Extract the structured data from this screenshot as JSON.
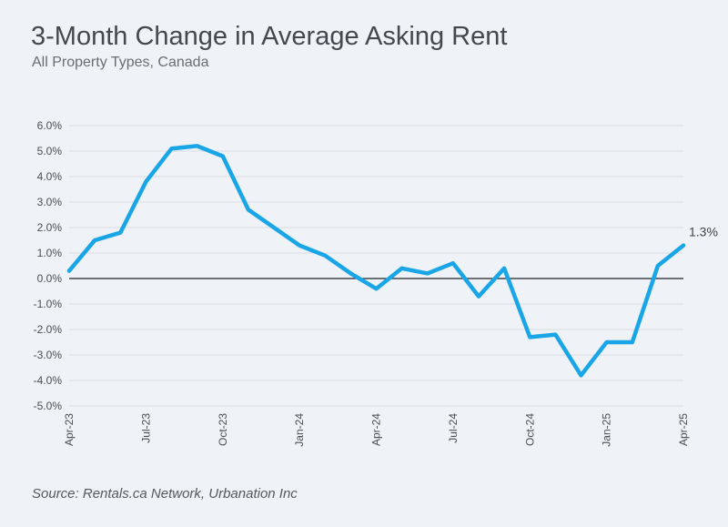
{
  "chart_data": {
    "type": "line",
    "title": "3-Month Change in Average Asking Rent",
    "subtitle": "All Property Types, Canada",
    "source": "Source: Rentals.ca Network, Urbanation Inc",
    "x": [
      "Apr-23",
      "May-23",
      "Jun-23",
      "Jul-23",
      "Aug-23",
      "Sep-23",
      "Oct-23",
      "Nov-23",
      "Dec-23",
      "Jan-24",
      "Feb-24",
      "Mar-24",
      "Apr-24",
      "May-24",
      "Jun-24",
      "Jul-24",
      "Aug-24",
      "Sep-24",
      "Oct-24",
      "Nov-24",
      "Dec-24",
      "Jan-25",
      "Feb-25",
      "Mar-25",
      "Apr-25"
    ],
    "x_tick_labels": [
      "Apr-23",
      "Jul-23",
      "Oct-23",
      "Jan-24",
      "Apr-24",
      "Jul-24",
      "Oct-24",
      "Jan-25",
      "Apr-25"
    ],
    "x_tick_positions": [
      0,
      3,
      6,
      9,
      12,
      15,
      18,
      21,
      24
    ],
    "series": [
      {
        "name": "3-Month Change in Average Asking Rent",
        "color": "#1aa6e6",
        "values": [
          0.3,
          1.5,
          1.8,
          3.8,
          5.1,
          5.2,
          4.8,
          2.7,
          2.0,
          1.3,
          0.9,
          0.2,
          -0.4,
          0.4,
          0.2,
          0.6,
          -0.7,
          0.4,
          -2.3,
          -2.2,
          -3.8,
          -2.5,
          -2.5,
          0.5,
          1.3
        ]
      }
    ],
    "ylim": [
      -5,
      6
    ],
    "y_ticks": [
      6,
      5,
      4,
      3,
      2,
      1,
      0,
      -1,
      -2,
      -3,
      -4,
      -5
    ],
    "y_tick_labels": [
      "6.0%",
      "5.0%",
      "4.0%",
      "3.0%",
      "2.0%",
      "1.0%",
      "0.0%",
      "-1.0%",
      "-2.0%",
      "-3.0%",
      "-4.0%",
      "-5.0%"
    ],
    "grid": true,
    "end_label": "1.3%"
  }
}
